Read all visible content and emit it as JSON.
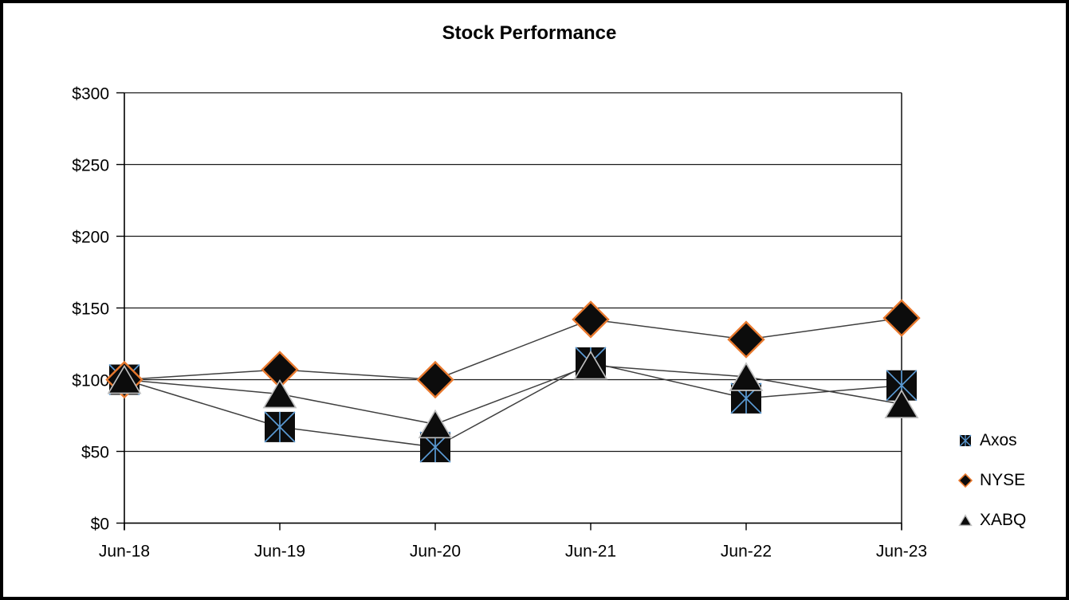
{
  "chart_data": {
    "type": "line",
    "title": "Stock Performance",
    "xlabel": "",
    "ylabel": "",
    "x_categories": [
      "Jun-18",
      "Jun-19",
      "Jun-20",
      "Jun-21",
      "Jun-22",
      "Jun-23"
    ],
    "y_min": 0,
    "y_max": 300,
    "y_step": 50,
    "y_tick_labels": [
      "$0",
      "$50",
      "$100",
      "$150",
      "$200",
      "$250",
      "$300"
    ],
    "ylim": [
      0,
      300
    ],
    "grid": true,
    "legend_position": "right",
    "series": [
      {
        "name": "Axos",
        "marker": "square-x",
        "values": [
          100,
          67,
          53,
          112,
          87,
          96
        ]
      },
      {
        "name": "NYSE",
        "marker": "diamond",
        "values": [
          100,
          107,
          100,
          142,
          128,
          143
        ]
      },
      {
        "name": "XABQ",
        "marker": "triangle",
        "values": [
          100,
          90,
          69,
          110,
          102,
          83
        ]
      }
    ]
  },
  "colors": {
    "background": "#ffffff",
    "frame_border": "#000000",
    "text": "#000000",
    "grid": "#1a1a1a",
    "axis": "#000000",
    "series_line": "#3f3f3f",
    "marker_fill": "#0c0c0c",
    "axos_accent": "#5B9BD5",
    "nyse_accent": "#E8792E",
    "xabq_accent": "#BFBFBF"
  }
}
